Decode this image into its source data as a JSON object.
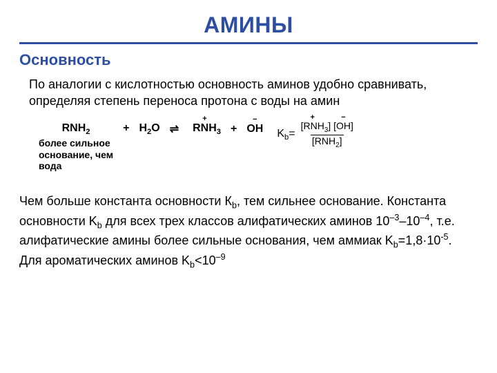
{
  "colors": {
    "title": "#2d4fa3",
    "hr": "#2d4fa3",
    "subtitle": "#2d4fa3",
    "body": "#000000"
  },
  "fontsizes": {
    "title": 32,
    "subtitle": 22,
    "para": 18,
    "eq": 16,
    "note": 14
  },
  "title": "АМИНЫ",
  "subtitle": "Основность",
  "para1": "По аналогии с кислотностью основность аминов удобно сравнивать, определяя степень переноса протона с воды на амин",
  "equation": {
    "reactant1": "RNH",
    "reactant1_sub": "2",
    "note_lines": [
      "более сильное",
      "основание, чем",
      "вода"
    ],
    "plus": "+",
    "reactant2": "H",
    "reactant2_sub": "2",
    "reactant2_tail": "O",
    "eqsym": "⇌",
    "product1": "RNH",
    "product1_sub": "3",
    "product2": "OH",
    "kb_label": "K",
    "kb_sub": "b",
    "eq": "=",
    "num_l": "[RNH",
    "num_l_sub": "3",
    "num_l_tail": "]",
    "num_r": "[OH]",
    "den": "[RNH",
    "den_sub": "2",
    "den_tail": "]"
  },
  "para2_parts": {
    "t1": "Чем больше константа основности К",
    "t1_sub": "b",
    "t2": ", тем сильнее основание. Константа основности K",
    "t2_sub": "b",
    "t3": " для всех трех классов алифатических аминов 10",
    "t3_sup1": "–3",
    "t4": "–10",
    "t4_sup": "–4",
    "t5": ", т.е. алифатические амины более сильные основания, чем аммиак K",
    "t5_sub": "b",
    "t6": "=1,8·10",
    "t6_sup": "-5",
    "t7": ". Для ароматических аминов K",
    "t7_sub": "b",
    "t8": "<10",
    "t8_sup": "–9"
  }
}
